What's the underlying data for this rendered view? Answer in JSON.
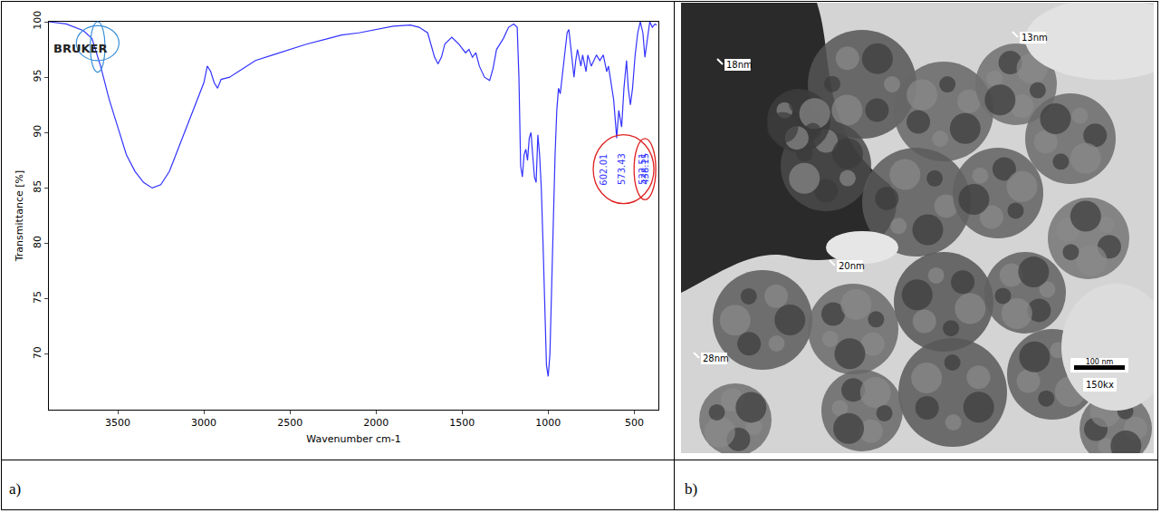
{
  "chart_data": {
    "type": "line",
    "x_label": "Wavenumber cm-1",
    "y_label": "Transmittance [%]",
    "logo": "BRUKER",
    "color": "#3333ff",
    "grid": false,
    "x": [
      3900,
      3800,
      3700,
      3650,
      3600,
      3550,
      3500,
      3450,
      3400,
      3350,
      3300,
      3250,
      3200,
      3150,
      3100,
      3050,
      3000,
      2980,
      2960,
      2940,
      2920,
      2900,
      2850,
      2800,
      2700,
      2600,
      2500,
      2400,
      2300,
      2200,
      2100,
      2000,
      1900,
      1800,
      1750,
      1700,
      1680,
      1660,
      1640,
      1620,
      1600,
      1560,
      1520,
      1480,
      1460,
      1440,
      1420,
      1400,
      1370,
      1340,
      1320,
      1300,
      1260,
      1230,
      1200,
      1180,
      1170,
      1160,
      1150,
      1140,
      1130,
      1120,
      1110,
      1100,
      1090,
      1080,
      1070,
      1060,
      1050,
      1040,
      1030,
      1020,
      1010,
      1000,
      990,
      980,
      970,
      960,
      950,
      940,
      930,
      920,
      900,
      890,
      880,
      870,
      860,
      850,
      840,
      830,
      810,
      800,
      780,
      770,
      750,
      720,
      700,
      680,
      660,
      650,
      640,
      620,
      602.01,
      590,
      573.43,
      560,
      545,
      535,
      522.51,
      510,
      495,
      480,
      465,
      450,
      438.15,
      425,
      410,
      395,
      380,
      370
    ],
    "values": [
      100,
      99.8,
      99.2,
      98.5,
      96,
      93,
      90.5,
      88,
      86.5,
      85.5,
      85,
      85.3,
      86.5,
      88.5,
      90.5,
      92.5,
      94.5,
      96,
      95.5,
      94.5,
      94,
      94.8,
      95,
      95.5,
      96.5,
      97,
      97.5,
      98,
      98.4,
      98.8,
      99,
      99.3,
      99.6,
      99.7,
      99.5,
      99,
      98,
      96.8,
      96.2,
      96.8,
      98,
      98.6,
      98,
      97.2,
      97.5,
      96.8,
      97.2,
      96,
      95,
      94.7,
      95.8,
      97.5,
      98.5,
      99.5,
      99.8,
      99.5,
      95,
      87,
      86,
      88,
      88.5,
      87.5,
      89.5,
      90,
      88,
      86,
      85.5,
      89.8,
      88,
      85,
      80,
      74,
      69,
      68,
      70,
      76,
      83,
      88,
      92,
      94,
      93.5,
      95,
      97.5,
      99,
      99.3,
      98,
      96.5,
      95,
      96.5,
      97.5,
      96,
      97,
      95.5,
      97,
      96,
      97,
      96.5,
      97,
      95.5,
      96,
      95,
      93,
      89.5,
      92,
      90.5,
      94,
      96.5,
      94,
      92.5,
      94,
      97,
      99,
      100,
      99,
      96.8,
      98.5,
      100,
      99.5,
      99.8,
      99.7
    ],
    "xlim": [
      3900,
      360
    ],
    "ylim": [
      65,
      100
    ],
    "xticks": [
      3500,
      3000,
      2500,
      2000,
      1500,
      1000,
      500
    ],
    "yticks": [
      70,
      75,
      80,
      85,
      90,
      95,
      100
    ],
    "annotations": [
      {
        "text": "602.01",
        "x": 602.01
      },
      {
        "text": "573.43",
        "x": 573.43
      },
      {
        "text": "522.51",
        "x": 522.51
      },
      {
        "text": "438.15",
        "x": 438.15
      }
    ]
  },
  "image": {
    "type": "micrograph",
    "labels": [
      "18nm",
      "13nm",
      "20nm",
      "28nm"
    ],
    "scale_bar": "100 nm",
    "magnification": "150kx"
  },
  "panel_labels": [
    "a)",
    "b)"
  ]
}
